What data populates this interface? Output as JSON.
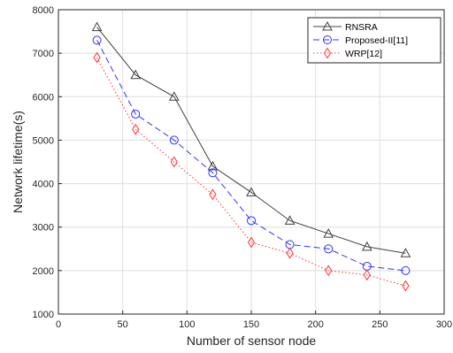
{
  "chart_data": {
    "type": "line",
    "title": "",
    "xlabel": "Number of sensor node",
    "ylabel": "Network lifetime(s)",
    "xlim": [
      0,
      300
    ],
    "ylim": [
      1000,
      8000
    ],
    "xticks": [
      0,
      50,
      100,
      150,
      200,
      250,
      300
    ],
    "yticks": [
      1000,
      2000,
      3000,
      4000,
      5000,
      6000,
      7000,
      8000
    ],
    "grid": true,
    "legend_position": "top-right",
    "x": [
      30,
      60,
      90,
      120,
      150,
      180,
      210,
      240,
      270
    ],
    "series": [
      {
        "name": "RNSRA",
        "color": "#404040",
        "line_style": "solid",
        "marker": "triangle",
        "values": [
          7600,
          6500,
          6000,
          4400,
          3800,
          3150,
          2850,
          2550,
          2400
        ]
      },
      {
        "name": "Proposed-II[11]",
        "color": "#3333ff",
        "line_style": "dashed",
        "marker": "circle",
        "values": [
          7300,
          5600,
          5000,
          4250,
          3150,
          2600,
          2500,
          2100,
          2000
        ]
      },
      {
        "name": "WRP[12]",
        "color": "#ff3333",
        "line_style": "dotted",
        "marker": "diamond",
        "values": [
          6900,
          5250,
          4500,
          3750,
          2650,
          2400,
          2000,
          1900,
          1650
        ]
      }
    ]
  }
}
